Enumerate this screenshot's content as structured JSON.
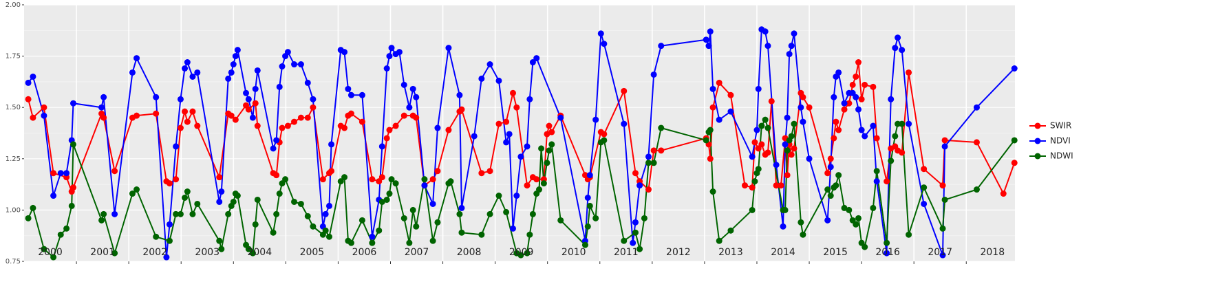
{
  "chart_data": {
    "type": "line",
    "xlim": [
      2000,
      2018.93
    ],
    "ylim": [
      0.75,
      2.0
    ],
    "yticks": [
      0.75,
      {
        "value": 1,
        "label": "1.00"
      },
      1.25,
      {
        "value": 1.5,
        "label": "1.50"
      },
      1.75,
      {
        "value": 2,
        "label": "2.00"
      }
    ],
    "yminor": [
      0.875,
      1.125,
      1.375,
      1.625,
      1.875
    ],
    "xticks": [
      {
        "value": 2000.5,
        "label": "2000"
      },
      {
        "value": 2001.5,
        "label": "2001"
      },
      {
        "value": 2002.5,
        "label": "2002"
      },
      {
        "value": 2003.5,
        "label": "2003"
      },
      {
        "value": 2004.5,
        "label": "2004"
      },
      {
        "value": 2005.5,
        "label": "2005"
      },
      {
        "value": 2006.5,
        "label": "2006"
      },
      {
        "value": 2007.5,
        "label": "2007"
      },
      {
        "value": 2008.5,
        "label": "2008"
      },
      {
        "value": 2009.5,
        "label": "2009"
      },
      {
        "value": 2010.5,
        "label": "2010"
      },
      {
        "value": 2011.5,
        "label": "2011"
      },
      {
        "value": 2012.5,
        "label": "2012"
      },
      {
        "value": 2013.5,
        "label": "2013"
      },
      {
        "value": 2014.5,
        "label": "2014"
      },
      {
        "value": 2015.5,
        "label": "2015"
      },
      {
        "value": 2016.5,
        "label": "2016"
      },
      {
        "value": 2017.5,
        "label": "2017"
      },
      {
        "value": 2018.5,
        "label": "2018"
      }
    ],
    "xgrid": [
      2001,
      2002,
      2003,
      2004,
      2005,
      2006,
      2007,
      2008,
      2009,
      2010,
      2011,
      2012,
      2013,
      2014,
      2015,
      2016,
      2017,
      2018
    ],
    "grid": true,
    "legend": "right",
    "series": [
      {
        "name": "SWIR",
        "color": "#ff0000",
        "x": [
          2000.08,
          2000.17,
          2000.38,
          2000.56,
          2000.81,
          2000.91,
          2000.94,
          2001.48,
          2001.52,
          2001.73,
          2002.07,
          2002.15,
          2002.52,
          2002.72,
          2002.78,
          2002.9,
          2002.99,
          2003.07,
          2003.12,
          2003.22,
          2003.31,
          2003.73,
          2003.9,
          2003.96,
          2004.04,
          2004.24,
          2004.29,
          2004.42,
          2004.46,
          2004.76,
          2004.82,
          2004.88,
          2004.93,
          2005.04,
          2005.16,
          2005.29,
          2005.42,
          2005.52,
          2005.71,
          2005.83,
          2005.87,
          2006.05,
          2006.12,
          2006.19,
          2006.25,
          2006.46,
          2006.65,
          2006.78,
          2006.84,
          2006.93,
          2006.98,
          2007.1,
          2007.26,
          2007.43,
          2007.49,
          2007.65,
          2007.81,
          2007.9,
          2008.11,
          2008.32,
          2008.36,
          2008.74,
          2008.9,
          2009.07,
          2009.21,
          2009.34,
          2009.41,
          2009.61,
          2009.72,
          2009.79,
          2009.93,
          2009.99,
          2010.03,
          2010.08,
          2010.25,
          2010.72,
          2010.77,
          2010.81,
          2011.02,
          2011.08,
          2011.46,
          2011.68,
          2011.76,
          2011.93,
          2012.03,
          2012.17,
          2013.03,
          2013.08,
          2013.11,
          2013.16,
          2013.28,
          2013.5,
          2013.77,
          2013.91,
          2013.96,
          2014.03,
          2014.09,
          2014.16,
          2014.21,
          2014.28,
          2014.37,
          2014.46,
          2014.54,
          2014.58,
          2014.62,
          2014.66,
          2014.71,
          2014.84,
          2014.88,
          2015.0,
          2015.35,
          2015.41,
          2015.47,
          2015.51,
          2015.56,
          2015.67,
          2015.76,
          2015.83,
          2015.89,
          2015.94,
          2016.0,
          2016.06,
          2016.22,
          2016.29,
          2016.48,
          2016.56,
          2016.64,
          2016.69,
          2016.77,
          2016.9,
          2017.19,
          2017.55,
          2017.59,
          2018.2,
          2018.71,
          2018.92
        ],
        "values": [
          1.54,
          1.45,
          1.5,
          1.18,
          1.16,
          1.09,
          1.11,
          1.47,
          1.45,
          1.19,
          1.45,
          1.46,
          1.47,
          1.14,
          1.13,
          1.15,
          1.4,
          1.48,
          1.43,
          1.48,
          1.41,
          1.16,
          1.47,
          1.46,
          1.44,
          1.51,
          1.49,
          1.52,
          1.41,
          1.18,
          1.17,
          1.33,
          1.4,
          1.41,
          1.43,
          1.45,
          1.45,
          1.5,
          1.15,
          1.18,
          1.19,
          1.41,
          1.4,
          1.46,
          1.47,
          1.43,
          1.15,
          1.14,
          1.16,
          1.35,
          1.39,
          1.41,
          1.46,
          1.46,
          1.45,
          1.12,
          1.15,
          1.19,
          1.39,
          1.48,
          1.49,
          1.18,
          1.19,
          1.42,
          1.43,
          1.57,
          1.5,
          1.12,
          1.16,
          1.15,
          1.15,
          1.37,
          1.41,
          1.38,
          1.46,
          1.17,
          1.15,
          1.16,
          1.38,
          1.37,
          1.58,
          1.18,
          1.14,
          1.1,
          1.29,
          1.29,
          1.35,
          1.32,
          1.25,
          1.5,
          1.62,
          1.56,
          1.12,
          1.11,
          1.33,
          1.3,
          1.32,
          1.27,
          1.28,
          1.53,
          1.12,
          1.12,
          1.35,
          1.17,
          1.32,
          1.27,
          1.3,
          1.57,
          1.55,
          1.5,
          1.18,
          1.25,
          1.35,
          1.43,
          1.39,
          1.49,
          1.52,
          1.61,
          1.65,
          1.72,
          1.54,
          1.61,
          1.6,
          1.35,
          1.14,
          1.3,
          1.31,
          1.29,
          1.28,
          1.67,
          1.2,
          1.12,
          1.34,
          1.33,
          1.08,
          1.23
        ]
      },
      {
        "name": "NDVI",
        "color": "#0000ff",
        "x": [
          2000.08,
          2000.17,
          2000.38,
          2000.56,
          2000.7,
          2000.81,
          2000.91,
          2000.94,
          2001.48,
          2001.52,
          2001.73,
          2002.07,
          2002.15,
          2002.52,
          2002.72,
          2002.78,
          2002.9,
          2002.99,
          2003.07,
          2003.12,
          2003.22,
          2003.31,
          2003.73,
          2003.77,
          2003.9,
          2003.96,
          2004.0,
          2004.04,
          2004.08,
          2004.24,
          2004.29,
          2004.37,
          2004.42,
          2004.46,
          2004.76,
          2004.82,
          2004.88,
          2004.93,
          2004.99,
          2005.04,
          2005.16,
          2005.29,
          2005.42,
          2005.52,
          2005.71,
          2005.76,
          2005.83,
          2005.87,
          2006.05,
          2006.12,
          2006.19,
          2006.25,
          2006.46,
          2006.65,
          2006.78,
          2006.84,
          2006.93,
          2006.98,
          2007.02,
          2007.1,
          2007.17,
          2007.26,
          2007.36,
          2007.43,
          2007.49,
          2007.65,
          2007.81,
          2007.9,
          2008.11,
          2008.32,
          2008.36,
          2008.6,
          2008.74,
          2008.9,
          2009.07,
          2009.21,
          2009.27,
          2009.34,
          2009.41,
          2009.49,
          2009.61,
          2009.66,
          2009.72,
          2009.79,
          2010.25,
          2010.72,
          2010.77,
          2010.81,
          2010.92,
          2011.02,
          2011.08,
          2011.46,
          2011.63,
          2011.68,
          2011.76,
          2011.93,
          2012.03,
          2012.17,
          2013.03,
          2013.08,
          2013.11,
          2013.16,
          2013.28,
          2013.5,
          2013.91,
          2014.0,
          2014.03,
          2014.09,
          2014.16,
          2014.21,
          2014.37,
          2014.5,
          2014.54,
          2014.58,
          2014.62,
          2014.66,
          2014.71,
          2014.84,
          2014.88,
          2015.0,
          2015.35,
          2015.41,
          2015.47,
          2015.51,
          2015.56,
          2015.67,
          2015.76,
          2015.83,
          2015.89,
          2015.94,
          2016.0,
          2016.06,
          2016.22,
          2016.29,
          2016.48,
          2016.56,
          2016.64,
          2016.69,
          2016.77,
          2016.9,
          2017.19,
          2017.55,
          2017.59,
          2018.2,
          2018.92
        ],
        "values": [
          1.62,
          1.65,
          1.46,
          1.07,
          1.18,
          1.18,
          1.34,
          1.52,
          1.5,
          1.55,
          0.98,
          1.67,
          1.74,
          1.55,
          0.77,
          0.93,
          1.31,
          1.54,
          1.69,
          1.72,
          1.65,
          1.67,
          1.04,
          1.09,
          1.64,
          1.67,
          1.71,
          1.75,
          1.78,
          1.57,
          1.54,
          1.45,
          1.59,
          1.68,
          1.3,
          1.34,
          1.6,
          1.7,
          1.75,
          1.77,
          1.71,
          1.71,
          1.62,
          1.54,
          0.92,
          0.98,
          1.02,
          1.32,
          1.78,
          1.77,
          1.59,
          1.56,
          1.56,
          0.87,
          1.05,
          1.31,
          1.69,
          1.75,
          1.79,
          1.76,
          1.77,
          1.61,
          1.5,
          1.59,
          1.55,
          1.12,
          1.03,
          1.4,
          1.79,
          1.56,
          1.01,
          1.36,
          1.64,
          1.71,
          1.63,
          1.33,
          1.37,
          0.91,
          1.07,
          1.26,
          1.31,
          1.54,
          1.72,
          1.74,
          1.45,
          0.85,
          1.06,
          1.17,
          1.44,
          1.86,
          1.81,
          1.42,
          0.84,
          0.94,
          1.12,
          1.26,
          1.66,
          1.8,
          1.83,
          1.8,
          1.87,
          1.59,
          1.44,
          1.48,
          1.26,
          1.39,
          1.59,
          1.88,
          1.87,
          1.8,
          1.22,
          0.92,
          1.32,
          1.45,
          1.76,
          1.8,
          1.86,
          1.5,
          1.43,
          1.25,
          0.95,
          1.21,
          1.55,
          1.65,
          1.67,
          1.52,
          1.57,
          1.57,
          1.55,
          1.49,
          1.39,
          1.36,
          1.41,
          1.14,
          0.79,
          1.54,
          1.79,
          1.84,
          1.78,
          1.42,
          1.03,
          0.78,
          1.31,
          1.5,
          1.69
        ]
      },
      {
        "name": "NDWI",
        "color": "#006400",
        "x": [
          2000.08,
          2000.17,
          2000.38,
          2000.56,
          2000.7,
          2000.81,
          2000.91,
          2000.94,
          2001.48,
          2001.52,
          2001.73,
          2002.07,
          2002.15,
          2002.52,
          2002.78,
          2002.9,
          2002.99,
          2003.07,
          2003.12,
          2003.22,
          2003.31,
          2003.73,
          2003.77,
          2003.9,
          2003.96,
          2004.0,
          2004.04,
          2004.08,
          2004.24,
          2004.29,
          2004.37,
          2004.42,
          2004.46,
          2004.76,
          2004.82,
          2004.88,
          2004.93,
          2004.99,
          2005.16,
          2005.29,
          2005.42,
          2005.52,
          2005.71,
          2005.76,
          2005.83,
          2006.05,
          2006.12,
          2006.19,
          2006.25,
          2006.46,
          2006.65,
          2006.78,
          2006.84,
          2006.93,
          2006.98,
          2007.02,
          2007.1,
          2007.26,
          2007.36,
          2007.43,
          2007.49,
          2007.65,
          2007.81,
          2007.9,
          2008.11,
          2008.15,
          2008.32,
          2008.36,
          2008.74,
          2008.9,
          2009.07,
          2009.21,
          2009.41,
          2009.49,
          2009.61,
          2009.66,
          2009.72,
          2009.79,
          2009.84,
          2009.88,
          2009.93,
          2009.99,
          2010.03,
          2010.08,
          2010.25,
          2010.72,
          2010.77,
          2010.81,
          2010.92,
          2011.02,
          2011.08,
          2011.46,
          2011.68,
          2011.76,
          2011.85,
          2011.93,
          2012.03,
          2012.17,
          2013.03,
          2013.08,
          2013.11,
          2013.16,
          2013.28,
          2013.5,
          2013.91,
          2013.96,
          2014.0,
          2014.03,
          2014.09,
          2014.16,
          2014.21,
          2014.5,
          2014.54,
          2014.58,
          2014.62,
          2014.66,
          2014.71,
          2014.84,
          2014.88,
          2015.35,
          2015.41,
          2015.47,
          2015.51,
          2015.56,
          2015.67,
          2015.76,
          2015.83,
          2015.89,
          2015.94,
          2016.0,
          2016.06,
          2016.22,
          2016.29,
          2016.48,
          2016.56,
          2016.64,
          2016.69,
          2016.77,
          2016.9,
          2017.19,
          2017.55,
          2017.59,
          2018.2,
          2018.92
        ],
        "values": [
          0.96,
          1.01,
          0.81,
          0.77,
          0.88,
          0.91,
          1.02,
          1.32,
          0.95,
          0.98,
          0.79,
          1.08,
          1.1,
          0.87,
          0.85,
          0.98,
          0.98,
          1.06,
          1.09,
          0.98,
          1.03,
          0.85,
          0.81,
          0.98,
          1.02,
          1.04,
          1.08,
          1.07,
          0.83,
          0.81,
          0.79,
          0.93,
          1.05,
          0.89,
          0.98,
          1.08,
          1.13,
          1.15,
          1.04,
          1.03,
          0.97,
          0.92,
          0.88,
          0.9,
          0.87,
          1.14,
          1.16,
          0.85,
          0.84,
          0.95,
          0.84,
          0.9,
          1.04,
          1.05,
          1.08,
          1.15,
          1.13,
          0.96,
          0.84,
          1.0,
          0.92,
          1.15,
          0.85,
          0.94,
          1.13,
          1.14,
          0.98,
          0.89,
          0.88,
          0.98,
          1.07,
          0.99,
          0.79,
          0.78,
          0.79,
          0.88,
          0.98,
          1.08,
          1.1,
          1.3,
          1.13,
          1.23,
          1.29,
          1.32,
          0.95,
          0.83,
          0.92,
          1.02,
          0.96,
          1.33,
          1.34,
          0.85,
          0.89,
          0.81,
          0.96,
          1.23,
          1.23,
          1.4,
          1.34,
          1.38,
          1.39,
          1.09,
          0.85,
          0.9,
          1.0,
          1.14,
          1.18,
          1.2,
          1.41,
          1.44,
          1.4,
          1.0,
          1.0,
          1.29,
          1.34,
          1.36,
          1.42,
          0.94,
          0.88,
          1.1,
          1.07,
          1.11,
          1.12,
          1.17,
          1.01,
          1.0,
          0.95,
          0.93,
          0.96,
          0.84,
          0.82,
          1.01,
          1.19,
          0.84,
          1.24,
          1.36,
          1.42,
          1.42,
          0.88,
          1.11,
          0.91,
          1.05,
          1.1,
          1.34
        ]
      }
    ]
  }
}
